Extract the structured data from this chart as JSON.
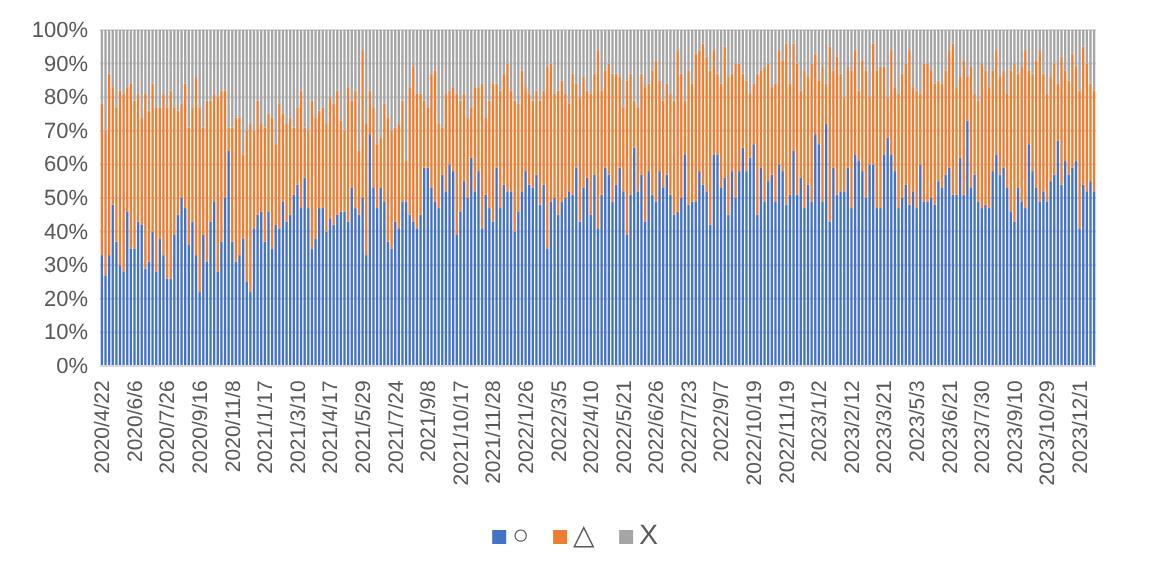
{
  "chart_data": {
    "type": "bar",
    "stacked": true,
    "grid": "y",
    "legend": "bottom",
    "ylim": [
      0,
      100
    ],
    "yticks": [
      {
        "value": 0,
        "label": "0%"
      },
      {
        "value": 10,
        "label": "10%"
      },
      {
        "value": 20,
        "label": "20%"
      },
      {
        "value": 30,
        "label": "30%"
      },
      {
        "value": 40,
        "label": "40%"
      },
      {
        "value": 50,
        "label": "50%"
      },
      {
        "value": 60,
        "label": "60%"
      },
      {
        "value": 70,
        "label": "70%"
      },
      {
        "value": 80,
        "label": "80%"
      },
      {
        "value": 90,
        "label": "90%"
      },
      {
        "value": 100,
        "label": "100%"
      }
    ],
    "categories": [
      "2020/4/22",
      null,
      null,
      null,
      null,
      null,
      null,
      null,
      null,
      "2020/6/6",
      null,
      null,
      null,
      null,
      null,
      null,
      null,
      null,
      "2020/7/26",
      null,
      null,
      null,
      null,
      null,
      null,
      null,
      null,
      "2020/9/16",
      null,
      null,
      null,
      null,
      null,
      null,
      null,
      null,
      "2020/11/8",
      null,
      null,
      null,
      null,
      null,
      null,
      null,
      null,
      "2021/1/17",
      null,
      null,
      null,
      null,
      null,
      null,
      null,
      null,
      "2021/3/10",
      null,
      null,
      null,
      null,
      null,
      null,
      null,
      null,
      "2021/4/17",
      null,
      null,
      null,
      null,
      null,
      null,
      null,
      null,
      "2021/5/29",
      null,
      null,
      null,
      null,
      null,
      null,
      null,
      null,
      "2021/7/24",
      null,
      null,
      null,
      null,
      null,
      null,
      null,
      null,
      "2021/9/8",
      null,
      null,
      null,
      null,
      null,
      null,
      null,
      null,
      "2021/10/17",
      null,
      null,
      null,
      null,
      null,
      null,
      null,
      null,
      "2021/11/28",
      null,
      null,
      null,
      null,
      null,
      null,
      null,
      null,
      "2022/1/26",
      null,
      null,
      null,
      null,
      null,
      null,
      null,
      null,
      "2022/3/5",
      null,
      null,
      null,
      null,
      null,
      null,
      null,
      null,
      "2022/4/10",
      null,
      null,
      null,
      null,
      null,
      null,
      null,
      null,
      "2022/5/21",
      null,
      null,
      null,
      null,
      null,
      null,
      null,
      null,
      "2022/6/26",
      null,
      null,
      null,
      null,
      null,
      null,
      null,
      null,
      "2022/7/23",
      null,
      null,
      null,
      null,
      null,
      null,
      null,
      null,
      "2022/9/7",
      null,
      null,
      null,
      null,
      null,
      null,
      null,
      null,
      "2022/10/19",
      null,
      null,
      null,
      null,
      null,
      null,
      null,
      null,
      "2022/11/19",
      null,
      null,
      null,
      null,
      null,
      null,
      null,
      null,
      "2023/1/2",
      null,
      null,
      null,
      null,
      null,
      null,
      null,
      null,
      "2023/2/12",
      null,
      null,
      null,
      null,
      null,
      null,
      null,
      null,
      "2023/3/21",
      null,
      null,
      null,
      null,
      null,
      null,
      null,
      null,
      "2023/5/3",
      null,
      null,
      null,
      null,
      null,
      null,
      null,
      null,
      "2023/6/21",
      null,
      null,
      null,
      null,
      null,
      null,
      null,
      null,
      "2023/7/30",
      null,
      null,
      null,
      null,
      null,
      null,
      null,
      null,
      "2023/9/10",
      null,
      null,
      null,
      null,
      null,
      null,
      null,
      null,
      "2023/10/29",
      null,
      null,
      null,
      null,
      null,
      null,
      null,
      null,
      "2023/12/1",
      null,
      null,
      null,
      null
    ],
    "series": [
      {
        "name": "○",
        "color": "#4472c4",
        "values": [
          33,
          27,
          33,
          48,
          37,
          30,
          28,
          46,
          35,
          35,
          43,
          42,
          29,
          31,
          40,
          28,
          38,
          33,
          26,
          26,
          39,
          45,
          50,
          47,
          36,
          43,
          33,
          22,
          39,
          31,
          43,
          49,
          28,
          37,
          50,
          64,
          37,
          31,
          33,
          38,
          25,
          22,
          41,
          45,
          46,
          37,
          46,
          35,
          42,
          41,
          49,
          43,
          45,
          51,
          54,
          47,
          56,
          47,
          35,
          38,
          47,
          47,
          40,
          44,
          42,
          45,
          46,
          46,
          43,
          53,
          47,
          45,
          50,
          33,
          69,
          53,
          47,
          53,
          49,
          37,
          35,
          43,
          41,
          49,
          49,
          45,
          43,
          41,
          45,
          59,
          59,
          53,
          49,
          47,
          57,
          52,
          60,
          58,
          39,
          46,
          55,
          50,
          62,
          52,
          58,
          41,
          51,
          47,
          43,
          59,
          47,
          54,
          52,
          52,
          40,
          46,
          52,
          58,
          54,
          53,
          57,
          48,
          54,
          35,
          49,
          50,
          45,
          49,
          50,
          52,
          51,
          59,
          43,
          53,
          56,
          45,
          57,
          41,
          51,
          59,
          57,
          49,
          54,
          59,
          52,
          39,
          51,
          65,
          52,
          57,
          43,
          58,
          51,
          49,
          58,
          53,
          57,
          51,
          45,
          46,
          50,
          63,
          48,
          49,
          49,
          58,
          54,
          52,
          42,
          63,
          63,
          53,
          56,
          45,
          58,
          50,
          58,
          65,
          58,
          62,
          66,
          45,
          59,
          49,
          55,
          57,
          49,
          60,
          58,
          48,
          51,
          64,
          51,
          56,
          47,
          54,
          49,
          69,
          66,
          49,
          72,
          43,
          59,
          51,
          52,
          52,
          59,
          47,
          63,
          61,
          58,
          50,
          60,
          60,
          47,
          47,
          63,
          68,
          63,
          58,
          47,
          50,
          54,
          48,
          52,
          47,
          60,
          49,
          49,
          50,
          48,
          55,
          53,
          57,
          59,
          51,
          51,
          62,
          51,
          73,
          53,
          57,
          49,
          47,
          48,
          47,
          58,
          63,
          57,
          59,
          53,
          46,
          43,
          53,
          49,
          47,
          66,
          58,
          53,
          49,
          52,
          49,
          55,
          57,
          67,
          54,
          61,
          57,
          59,
          61,
          41,
          54,
          52,
          55,
          52
        ]
      },
      {
        "name": "△",
        "color": "#ed7d31",
        "values": [
          45,
          43,
          54,
          35,
          40,
          52,
          53,
          37,
          49,
          44,
          38,
          32,
          52,
          45,
          44,
          49,
          39,
          48,
          51,
          56,
          38,
          31,
          28,
          37,
          35,
          34,
          53,
          55,
          32,
          48,
          36,
          32,
          52,
          45,
          32,
          7,
          34,
          43,
          41,
          25,
          45,
          50,
          29,
          34,
          26,
          34,
          29,
          39,
          24,
          37,
          26,
          29,
          29,
          20,
          23,
          35,
          15,
          23,
          44,
          36,
          29,
          30,
          32,
          36,
          36,
          37,
          27,
          24,
          40,
          26,
          35,
          19,
          44,
          39,
          13,
          24,
          19,
          15,
          29,
          37,
          35,
          28,
          31,
          30,
          12,
          38,
          46,
          40,
          36,
          20,
          18,
          34,
          39,
          25,
          14,
          29,
          22,
          25,
          42,
          33,
          26,
          24,
          15,
          31,
          25,
          43,
          23,
          32,
          41,
          25,
          35,
          33,
          38,
          30,
          39,
          32,
          36,
          25,
          27,
          26,
          25,
          31,
          28,
          54,
          41,
          31,
          37,
          36,
          31,
          26,
          36,
          25,
          37,
          33,
          26,
          36,
          30,
          53,
          31,
          29,
          33,
          38,
          33,
          27,
          25,
          46,
          36,
          14,
          25,
          30,
          40,
          26,
          37,
          42,
          27,
          26,
          27,
          30,
          34,
          48,
          37,
          16,
          40,
          35,
          44,
          36,
          42,
          40,
          46,
          31,
          24,
          31,
          39,
          41,
          29,
          40,
          32,
          22,
          27,
          19,
          18,
          42,
          29,
          40,
          35,
          26,
          35,
          34,
          33,
          48,
          33,
          32,
          39,
          26,
          41,
          32,
          41,
          24,
          19,
          40,
          12,
          52,
          29,
          41,
          35,
          28,
          30,
          41,
          31,
          21,
          33,
          38,
          20,
          36,
          41,
          42,
          26,
          12,
          31,
          25,
          34,
          37,
          36,
          46,
          31,
          35,
          21,
          41,
          41,
          38,
          36,
          30,
          31,
          31,
          35,
          45,
          32,
          24,
          40,
          13,
          36,
          24,
          30,
          43,
          40,
          36,
          30,
          31,
          29,
          29,
          28,
          42,
          47,
          34,
          40,
          47,
          22,
          29,
          38,
          45,
          35,
          32,
          31,
          33,
          17,
          38,
          27,
          28,
          34,
          28,
          41,
          41,
          38,
          29,
          30
        ]
      },
      {
        "name": "X",
        "color": "#a5a5a5",
        "values": [
          22,
          30,
          13,
          17,
          23,
          18,
          19,
          17,
          16,
          21,
          19,
          26,
          19,
          24,
          16,
          23,
          23,
          19,
          23,
          18,
          23,
          24,
          22,
          16,
          29,
          23,
          14,
          23,
          29,
          21,
          21,
          19,
          20,
          18,
          18,
          29,
          29,
          26,
          26,
          37,
          30,
          28,
          30,
          21,
          28,
          29,
          25,
          26,
          34,
          22,
          25,
          28,
          26,
          29,
          23,
          18,
          29,
          30,
          21,
          26,
          24,
          23,
          28,
          20,
          22,
          18,
          27,
          30,
          17,
          21,
          18,
          36,
          6,
          28,
          18,
          23,
          34,
          32,
          22,
          26,
          30,
          29,
          28,
          21,
          39,
          17,
          11,
          19,
          19,
          21,
          23,
          13,
          12,
          28,
          29,
          19,
          18,
          17,
          19,
          21,
          19,
          26,
          23,
          17,
          17,
          16,
          26,
          21,
          16,
          16,
          18,
          13,
          10,
          18,
          21,
          22,
          12,
          17,
          19,
          21,
          18,
          21,
          18,
          11,
          10,
          19,
          18,
          15,
          19,
          22,
          13,
          16,
          20,
          14,
          18,
          19,
          13,
          6,
          18,
          12,
          10,
          13,
          13,
          14,
          23,
          15,
          13,
          21,
          23,
          13,
          17,
          16,
          12,
          9,
          15,
          21,
          16,
          19,
          21,
          6,
          13,
          21,
          12,
          16,
          7,
          6,
          4,
          8,
          12,
          6,
          13,
          16,
          5,
          14,
          13,
          10,
          10,
          13,
          15,
          19,
          16,
          13,
          12,
          11,
          10,
          17,
          16,
          6,
          9,
          4,
          16,
          4,
          10,
          18,
          12,
          14,
          10,
          7,
          15,
          11,
          16,
          5,
          12,
          8,
          13,
          20,
          11,
          12,
          6,
          18,
          9,
          12,
          20,
          4,
          12,
          11,
          11,
          20,
          6,
          17,
          19,
          13,
          10,
          6,
          17,
          18,
          19,
          10,
          10,
          12,
          16,
          15,
          16,
          12,
          6,
          4,
          17,
          14,
          9,
          14,
          11,
          19,
          21,
          10,
          12,
          17,
          12,
          6,
          14,
          12,
          19,
          12,
          10,
          13,
          11,
          6,
          12,
          13,
          9,
          6,
          13,
          19,
          14,
          10,
          16,
          8,
          12,
          15,
          7,
          11,
          18,
          5,
          10,
          16,
          18
        ]
      }
    ]
  }
}
